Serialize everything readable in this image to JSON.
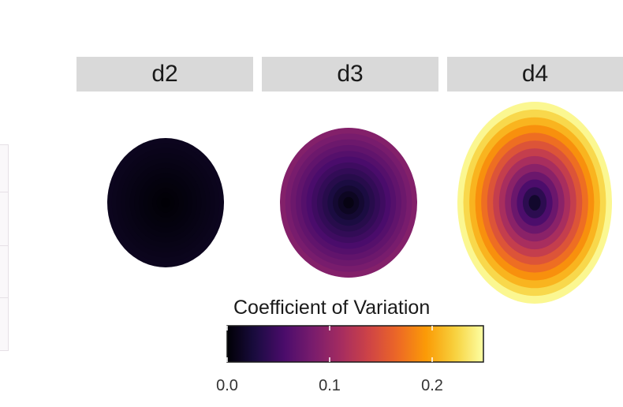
{
  "chart_data": {
    "type": "heatmap",
    "title": "",
    "xlabel": "",
    "ylabel": "",
    "facets": [
      {
        "label": "d2",
        "center_cv": 0.0,
        "edge_cv": 0.012,
        "aspect": "circle"
      },
      {
        "label": "d3",
        "center_cv": 0.0,
        "edge_cv": 0.09,
        "aspect": "circle"
      },
      {
        "label": "d4",
        "center_cv": 0.0,
        "edge_cv": 0.245,
        "aspect": "vertical-ellipse"
      }
    ],
    "colorbar": {
      "title": "Coefficient of Variation",
      "colormap": "inferno",
      "range": [
        0.0,
        0.25
      ],
      "ticks": [
        0.0,
        0.1,
        0.2
      ],
      "tick_labels": [
        "0.0",
        "0.1",
        "0.2"
      ]
    }
  },
  "colors": {
    "strip_background": "#d9d9d9",
    "colormap_stops": [
      "#000004",
      "#1b0c41",
      "#4a0c6b",
      "#781c6d",
      "#a52c60",
      "#cf4446",
      "#ed6925",
      "#fb9b06",
      "#f7d13d",
      "#fcffa4"
    ]
  }
}
